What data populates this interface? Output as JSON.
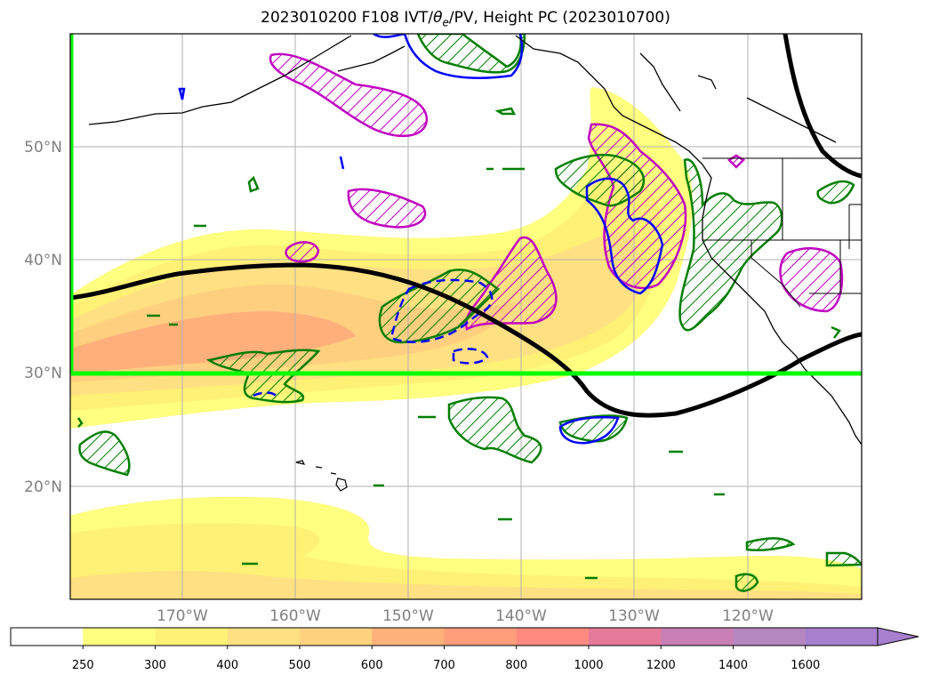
{
  "title": {
    "prefix": "2023010200 F108 IVT/",
    "theta": "θ",
    "theta_sub": "e",
    "suffix": "/PV, Height PC (2023010700)"
  },
  "lat_labels": [
    "50°N",
    "40°N",
    "30°N",
    "20°N"
  ],
  "lon_labels": [
    "170°W",
    "160°W",
    "150°W",
    "140°W",
    "130°W",
    "120°W"
  ],
  "colorbar": {
    "ticks": [
      "250",
      "300",
      "400",
      "500",
      "600",
      "700",
      "800",
      "1000",
      "1200",
      "1400",
      "1600"
    ],
    "colors": [
      "#ffffff",
      "#ffff80",
      "#fff176",
      "#ffe082",
      "#ffd27f",
      "#ffb27a",
      "#ff9e7a",
      "#ff8a80",
      "#e57a9a",
      "#c97fb5",
      "#b587c1",
      "#a67fcf"
    ],
    "extend": "max"
  },
  "colors": {
    "ivt_light": "#ffff80",
    "ivt_mid": "#ffe082",
    "ivt_strong": "#ffc07a",
    "ivt_core": "#ffa87a",
    "height_contour": "#000000",
    "theta_green": "#007f00",
    "pv_magenta": "#c000c0",
    "blue_contour": "#0000ff",
    "box_line": "#00ff00",
    "coast": "#000000"
  }
}
